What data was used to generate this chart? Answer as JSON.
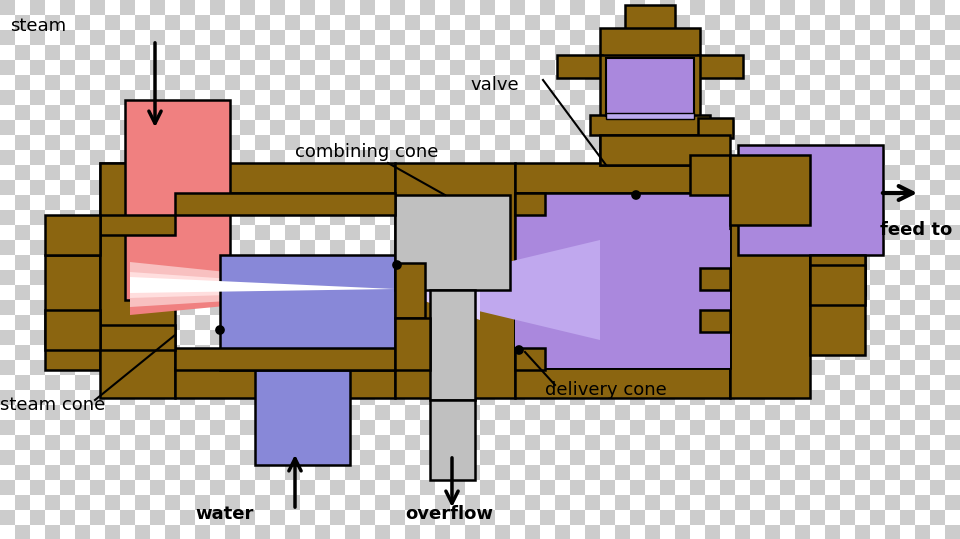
{
  "colors": {
    "brown": "#8B6510",
    "pink": "#F08080",
    "pink_light": "#F8C0C0",
    "blue": "#8888D8",
    "purple": "#AA88DD",
    "gray": "#C0C0C0",
    "gray_light": "#D8D8D8",
    "white": "#FFFFFF",
    "black": "#000000",
    "checker_dark": "#CCCCCC",
    "checker_light": "#FFFFFF"
  },
  "labels": {
    "steam": "steam",
    "valve": "valve",
    "combining_cone": "combining cone",
    "steam_cone": "steam cone",
    "delivery_cone": "delivery cone",
    "water": "water",
    "overflow": "overflow",
    "feed_to": "feed to"
  },
  "checker_tile": 15
}
